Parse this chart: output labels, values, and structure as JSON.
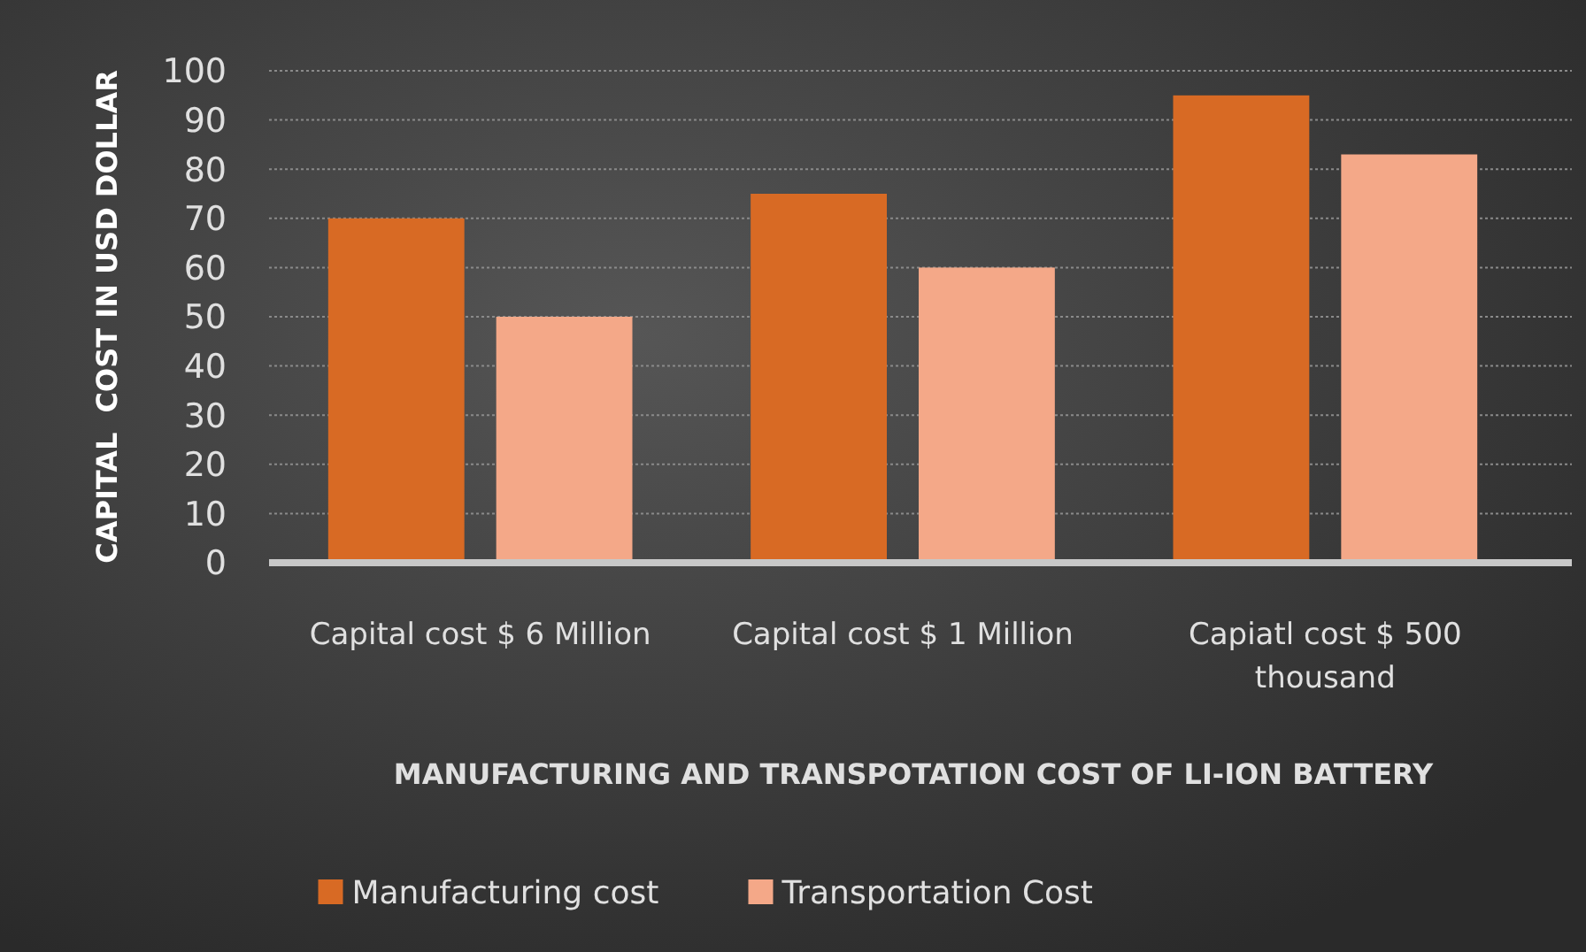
{
  "chart_data": {
    "type": "bar",
    "xlabel": "MANUFACTURING AND TRANSPOTATION COST OF LI-ION BATTERY",
    "ylabel": "CAPITAL  COST IN USD DOLLAR",
    "categories": [
      "Capital cost $ 6 Million",
      "Capital cost $ 1 Million",
      "Capiatl cost $ 500 thousand"
    ],
    "series": [
      {
        "name": "Manufacturing cost",
        "color": "#d86a24",
        "values": [
          70,
          75,
          95
        ]
      },
      {
        "name": "Transportation Cost",
        "color": "#f4a888",
        "values": [
          50,
          60,
          83
        ]
      }
    ],
    "ylim": [
      0,
      100
    ],
    "yticks": [
      0,
      10,
      20,
      30,
      40,
      50,
      60,
      70,
      80,
      90,
      100
    ],
    "grid": "y",
    "legend": "bottom"
  }
}
